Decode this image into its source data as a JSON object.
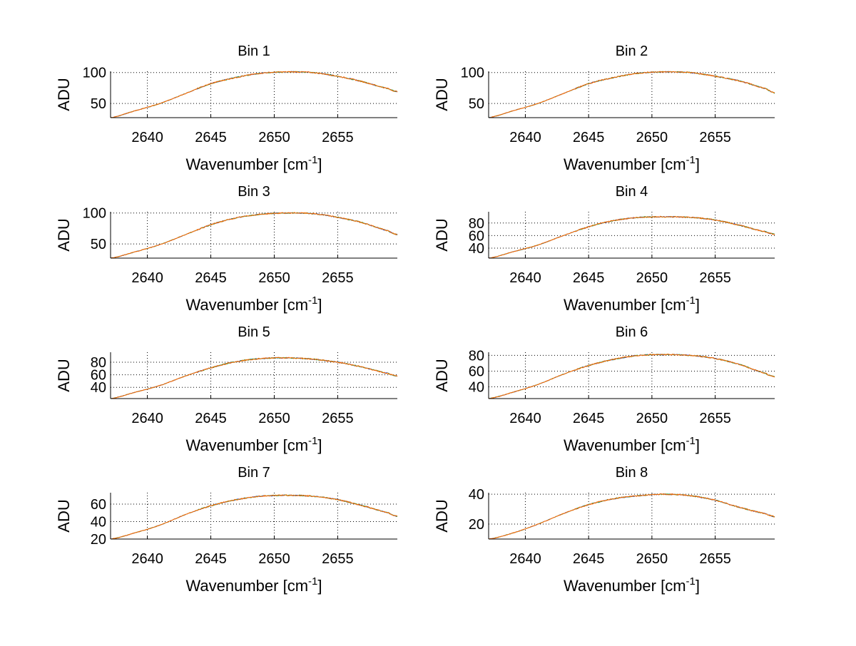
{
  "chart_data": {
    "type": "line",
    "layout": "4x2 subplots",
    "xlabel": "Wavenumber [cm",
    "xlabel_superscript": "-1",
    "xlabel_close": "]",
    "ylabel": "ADU",
    "xlim": [
      2637.1,
      2659.7
    ],
    "xticks": [
      2640,
      2645,
      2650,
      2655
    ],
    "grid": true,
    "series_colors": [
      "#1f3fbf",
      "#2ca02c",
      "#ff6600"
    ],
    "x": [
      2637.1,
      2639,
      2641,
      2643,
      2645,
      2647,
      2649,
      2651,
      2653,
      2655,
      2657,
      2659,
      2659.7
    ],
    "panels": [
      {
        "title": "Bin 1",
        "ylim": [
          27,
          102
        ],
        "yticks": [
          50,
          100
        ],
        "values": [
          27,
          38,
          50,
          66,
          82,
          92,
          99,
          101,
          100,
          94,
          85,
          74,
          69
        ]
      },
      {
        "title": "Bin 2",
        "ylim": [
          27,
          102
        ],
        "yticks": [
          50,
          100
        ],
        "values": [
          27,
          38,
          50,
          66,
          82,
          92,
          99,
          101,
          100,
          94,
          86,
          74,
          67
        ]
      },
      {
        "title": "Bin 3",
        "ylim": [
          27,
          102
        ],
        "yticks": [
          50,
          100
        ],
        "values": [
          27,
          37,
          49,
          65,
          81,
          92,
          98,
          100,
          99,
          93,
          84,
          71,
          65
        ]
      },
      {
        "title": "Bin 4",
        "ylim": [
          24,
          98
        ],
        "yticks": [
          40,
          60,
          80
        ],
        "values": [
          24,
          34,
          45,
          60,
          74,
          84,
          89,
          90,
          89,
          85,
          76,
          66,
          62
        ]
      },
      {
        "title": "Bin 5",
        "ylim": [
          22,
          96
        ],
        "yticks": [
          40,
          60,
          80
        ],
        "values": [
          22,
          32,
          43,
          58,
          71,
          81,
          86,
          87,
          85,
          80,
          72,
          62,
          58
        ]
      },
      {
        "title": "Bin 6",
        "ylim": [
          25,
          84
        ],
        "yticks": [
          40,
          60,
          80
        ],
        "values": [
          25,
          33,
          43,
          56,
          67,
          75,
          80,
          81,
          80,
          76,
          68,
          57,
          53
        ]
      },
      {
        "title": "Bin 7",
        "ylim": [
          20,
          73
        ],
        "yticks": [
          20,
          40,
          60
        ],
        "values": [
          20,
          27,
          36,
          48,
          58,
          65,
          69,
          70,
          69,
          65,
          58,
          50,
          46
        ]
      },
      {
        "title": "Bin 8",
        "ylim": [
          10,
          41
        ],
        "yticks": [
          20,
          40
        ],
        "values": [
          10,
          14,
          20,
          27,
          33,
          37,
          39,
          40,
          39,
          36,
          31,
          27,
          25
        ]
      }
    ]
  }
}
